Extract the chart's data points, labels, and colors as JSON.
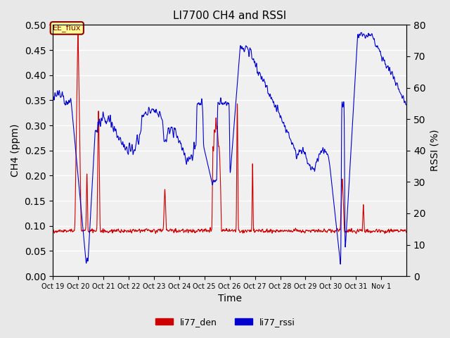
{
  "title": "LI7700 CH4 and RSSI",
  "xlabel": "Time",
  "ylabel_left": "CH4 (ppm)",
  "ylabel_right": "RSSI (%)",
  "ylim_left": [
    0.0,
    0.5
  ],
  "ylim_right": [
    0,
    80
  ],
  "yticks_left": [
    0.0,
    0.05,
    0.1,
    0.15,
    0.2,
    0.25,
    0.3,
    0.35,
    0.4,
    0.45,
    0.5
  ],
  "yticks_right": [
    0,
    10,
    20,
    30,
    40,
    50,
    60,
    70,
    80
  ],
  "annotation_text": "EE_flux",
  "annotation_color": "#8B0000",
  "annotation_bg": "#FFFF99",
  "line_ch4_color": "#CC0000",
  "line_rssi_color": "#0000CC",
  "legend_labels": [
    "li77_den",
    "li77_rssi"
  ],
  "background_color": "#E8E8E8",
  "plot_bg_color": "#F0F0F0",
  "grid_color": "white"
}
